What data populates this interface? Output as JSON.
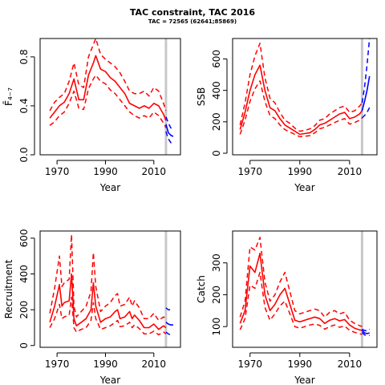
{
  "figure": {
    "title": "TAC constraint, TAC 2016",
    "subtitle": "TAC = 72565 (62641;85869)"
  },
  "colors": {
    "estimate": "#ff0000",
    "forecast": "#0000ff",
    "tac_line": "#c8c8c8"
  },
  "chart_data": [
    {
      "id": "fbar",
      "type": "line",
      "xlabel": "Year",
      "ylabel": "F̄₄₋₇",
      "xlim": [
        1963,
        2021
      ],
      "ylim": [
        0,
        0.95
      ],
      "xticks": [
        1970,
        1990,
        2010
      ],
      "yticks": [
        0.0,
        0.4,
        0.8
      ],
      "ytick_labels": [
        "0.0",
        "0.4",
        "0.8"
      ],
      "vline": 2015,
      "series": [
        {
          "role": "estimate",
          "style": "solid",
          "x": [
            1967,
            1969,
            1971,
            1973,
            1975,
            1977,
            1979,
            1981,
            1983,
            1985,
            1986,
            1988,
            1990,
            1992,
            1994,
            1996,
            1998,
            2000,
            2002,
            2004,
            2006,
            2008,
            2010,
            2012,
            2014,
            2015
          ],
          "y": [
            0.3,
            0.35,
            0.4,
            0.43,
            0.5,
            0.62,
            0.45,
            0.45,
            0.65,
            0.75,
            0.81,
            0.7,
            0.68,
            0.63,
            0.6,
            0.55,
            0.5,
            0.42,
            0.4,
            0.38,
            0.4,
            0.38,
            0.42,
            0.4,
            0.33,
            0.28
          ]
        },
        {
          "role": "estimate",
          "style": "dashed",
          "x": [
            1967,
            1969,
            1971,
            1973,
            1975,
            1977,
            1979,
            1981,
            1983,
            1985,
            1986,
            1988,
            1990,
            1992,
            1994,
            1996,
            1998,
            2000,
            2002,
            2004,
            2006,
            2008,
            2010,
            2012,
            2014,
            2015
          ],
          "y": [
            0.36,
            0.43,
            0.47,
            0.5,
            0.6,
            0.75,
            0.57,
            0.55,
            0.8,
            0.9,
            0.95,
            0.82,
            0.78,
            0.75,
            0.72,
            0.67,
            0.6,
            0.52,
            0.5,
            0.5,
            0.52,
            0.48,
            0.55,
            0.52,
            0.42,
            0.36
          ]
        },
        {
          "role": "estimate",
          "style": "dashed",
          "x": [
            1967,
            1969,
            1971,
            1973,
            1975,
            1977,
            1979,
            1981,
            1983,
            1985,
            1986,
            1988,
            1990,
            1992,
            1994,
            1996,
            1998,
            2000,
            2002,
            2004,
            2006,
            2008,
            2010,
            2012,
            2014,
            2015
          ],
          "y": [
            0.24,
            0.27,
            0.32,
            0.35,
            0.42,
            0.52,
            0.38,
            0.37,
            0.54,
            0.62,
            0.65,
            0.6,
            0.58,
            0.53,
            0.5,
            0.45,
            0.4,
            0.35,
            0.32,
            0.3,
            0.32,
            0.3,
            0.35,
            0.32,
            0.26,
            0.22
          ]
        },
        {
          "role": "forecast",
          "style": "solid",
          "x": [
            2015,
            2016,
            2017,
            2018
          ],
          "y": [
            0.25,
            0.18,
            0.16,
            0.15
          ]
        },
        {
          "role": "forecast",
          "style": "dashed",
          "x": [
            2015,
            2016,
            2017,
            2018
          ],
          "y": [
            0.31,
            0.26,
            0.22,
            0.2
          ]
        },
        {
          "role": "forecast",
          "style": "dashed",
          "x": [
            2015,
            2016,
            2017,
            2018
          ],
          "y": [
            0.19,
            0.13,
            0.1,
            0.08
          ]
        }
      ]
    },
    {
      "id": "ssb",
      "type": "line",
      "xlabel": "Year",
      "ylabel": "SSB",
      "xlim": [
        1963,
        2021
      ],
      "ylim": [
        -10,
        730
      ],
      "xticks": [
        1970,
        1990,
        2010
      ],
      "yticks": [
        0,
        200,
        400,
        600
      ],
      "ytick_labels": [
        "0",
        "200",
        "400",
        "600"
      ],
      "vline": 2015,
      "series": [
        {
          "role": "estimate",
          "style": "solid",
          "x": [
            1966,
            1968,
            1970,
            1972,
            1974,
            1976,
            1978,
            1980,
            1982,
            1984,
            1986,
            1988,
            1990,
            1992,
            1994,
            1996,
            1998,
            2000,
            2002,
            2004,
            2006,
            2008,
            2010,
            2012,
            2014,
            2015
          ],
          "y": [
            150,
            260,
            400,
            500,
            560,
            400,
            290,
            270,
            220,
            180,
            160,
            140,
            120,
            125,
            130,
            150,
            180,
            190,
            210,
            230,
            250,
            260,
            220,
            230,
            250,
            270
          ]
        },
        {
          "role": "estimate",
          "style": "dashed",
          "x": [
            1966,
            1968,
            1970,
            1972,
            1974,
            1976,
            1978,
            1980,
            1982,
            1984,
            1986,
            1988,
            1990,
            1992,
            1994,
            1996,
            1998,
            2000,
            2002,
            2004,
            2006,
            2008,
            2010,
            2012,
            2014,
            2015
          ],
          "y": [
            180,
            320,
            500,
            620,
            700,
            480,
            350,
            320,
            260,
            210,
            190,
            160,
            140,
            145,
            155,
            175,
            210,
            220,
            250,
            270,
            290,
            300,
            260,
            270,
            300,
            320
          ]
        },
        {
          "role": "estimate",
          "style": "dashed",
          "x": [
            1966,
            1968,
            1970,
            1972,
            1974,
            1976,
            1978,
            1980,
            1982,
            1984,
            1986,
            1988,
            1990,
            1992,
            1994,
            1996,
            1998,
            2000,
            2002,
            2004,
            2006,
            2008,
            2010,
            2012,
            2014,
            2015
          ],
          "y": [
            120,
            210,
            330,
            410,
            460,
            330,
            240,
            220,
            180,
            150,
            135,
            120,
            105,
            108,
            112,
            130,
            155,
            165,
            180,
            195,
            210,
            220,
            185,
            195,
            210,
            225
          ]
        },
        {
          "role": "forecast",
          "style": "solid",
          "x": [
            2015,
            2016,
            2017,
            2018
          ],
          "y": [
            270,
            330,
            400,
            490
          ]
        },
        {
          "role": "forecast",
          "style": "dashed",
          "x": [
            2015,
            2016,
            2017,
            2018
          ],
          "y": [
            320,
            420,
            560,
            730
          ]
        },
        {
          "role": "forecast",
          "style": "dashed",
          "x": [
            2015,
            2016,
            2017,
            2018
          ],
          "y": [
            225,
            240,
            260,
            290
          ]
        }
      ]
    },
    {
      "id": "recruitment",
      "type": "line",
      "xlabel": "Year",
      "ylabel": "Recruitment",
      "xlim": [
        1963,
        2021
      ],
      "ylim": [
        -10,
        640
      ],
      "xticks": [
        1970,
        1990,
        2010
      ],
      "yticks": [
        0,
        200,
        400,
        600
      ],
      "ytick_labels": [
        "0",
        "200",
        "400",
        "600"
      ],
      "vline": 2015,
      "series": [
        {
          "role": "estimate",
          "style": "solid",
          "x": [
            1967,
            1969,
            1971,
            1972,
            1973,
            1975,
            1976,
            1977,
            1978,
            1980,
            1982,
            1984,
            1985,
            1986,
            1988,
            1990,
            1992,
            1994,
            1995,
            1996,
            1998,
            2000,
            2001,
            2002,
            2004,
            2006,
            2008,
            2010,
            2012,
            2014,
            2015
          ],
          "y": [
            130,
            220,
            340,
            220,
            240,
            250,
            400,
            150,
            110,
            130,
            150,
            200,
            350,
            220,
            130,
            150,
            160,
            190,
            200,
            150,
            160,
            190,
            150,
            170,
            140,
            100,
            100,
            120,
            90,
            110,
            100
          ]
        },
        {
          "role": "estimate",
          "style": "dashed",
          "x": [
            1967,
            1969,
            1971,
            1972,
            1973,
            1975,
            1976,
            1977,
            1978,
            1980,
            1982,
            1984,
            1985,
            1986,
            1988,
            1990,
            1992,
            1994,
            1995,
            1996,
            1998,
            2000,
            2001,
            2002,
            2004,
            2006,
            2008,
            2010,
            2012,
            2014,
            2015
          ],
          "y": [
            180,
            320,
            500,
            330,
            350,
            370,
            620,
            220,
            160,
            190,
            220,
            300,
            520,
            330,
            190,
            220,
            240,
            280,
            290,
            220,
            230,
            270,
            220,
            250,
            210,
            150,
            150,
            180,
            140,
            160,
            150
          ]
        },
        {
          "role": "estimate",
          "style": "dashed",
          "x": [
            1967,
            1969,
            1971,
            1972,
            1973,
            1975,
            1976,
            1977,
            1978,
            1980,
            1982,
            1984,
            1985,
            1986,
            1988,
            1990,
            1992,
            1994,
            1995,
            1996,
            1998,
            2000,
            2001,
            2002,
            2004,
            2006,
            2008,
            2010,
            2012,
            2014,
            2015
          ],
          "y": [
            100,
            150,
            230,
            150,
            160,
            170,
            270,
            100,
            75,
            90,
            100,
            140,
            240,
            150,
            90,
            100,
            110,
            130,
            140,
            105,
            110,
            130,
            100,
            115,
            95,
            65,
            65,
            80,
            60,
            75,
            65
          ]
        },
        {
          "role": "forecast",
          "style": "solid",
          "x": [
            2015,
            2016,
            2017,
            2018
          ],
          "y": [
            130,
            120,
            115,
            115
          ]
        },
        {
          "role": "forecast",
          "style": "dashed",
          "x": [
            2015,
            2016,
            2017,
            2018
          ],
          "y": [
            210,
            200,
            200,
            200
          ]
        },
        {
          "role": "forecast",
          "style": "dashed",
          "x": [
            2015,
            2016,
            2017,
            2018
          ],
          "y": [
            75,
            65,
            60,
            60
          ]
        }
      ]
    },
    {
      "id": "catch",
      "type": "line",
      "xlabel": "Year",
      "ylabel": "Catch",
      "xlim": [
        1963,
        2021
      ],
      "ylim": [
        35,
        400
      ],
      "xticks": [
        1970,
        1990,
        2010
      ],
      "yticks": [
        100,
        200,
        300
      ],
      "ytick_labels": [
        "100",
        "200",
        "300"
      ],
      "vline": 2015,
      "series": [
        {
          "role": "estimate",
          "style": "solid",
          "x": [
            1966,
            1968,
            1970,
            1972,
            1974,
            1976,
            1978,
            1980,
            1982,
            1984,
            1986,
            1988,
            1990,
            1992,
            1994,
            1996,
            1998,
            2000,
            2002,
            2004,
            2006,
            2008,
            2010,
            2012,
            2014,
            2015
          ],
          "y": [
            110,
            150,
            290,
            270,
            330,
            200,
            150,
            170,
            200,
            220,
            170,
            120,
            115,
            120,
            125,
            130,
            125,
            110,
            120,
            125,
            118,
            122,
            105,
            95,
            90,
            88
          ]
        },
        {
          "role": "estimate",
          "style": "dashed",
          "x": [
            1966,
            1968,
            1970,
            1972,
            1974,
            1976,
            1978,
            1980,
            1982,
            1984,
            1986,
            1988,
            1990,
            1992,
            1994,
            1996,
            1998,
            2000,
            2002,
            2004,
            2006,
            2008,
            2010,
            2012,
            2014,
            2015
          ],
          "y": [
            130,
            180,
            350,
            340,
            380,
            240,
            180,
            200,
            240,
            270,
            210,
            150,
            140,
            145,
            150,
            155,
            150,
            130,
            145,
            150,
            140,
            145,
            120,
            110,
            103,
            100
          ]
        },
        {
          "role": "estimate",
          "style": "dashed",
          "x": [
            1966,
            1968,
            1970,
            1972,
            1974,
            1976,
            1978,
            1980,
            1982,
            1984,
            1986,
            1988,
            1990,
            1992,
            1994,
            1996,
            1998,
            2000,
            2002,
            2004,
            2006,
            2008,
            2010,
            2012,
            2014,
            2015
          ],
          "y": [
            90,
            125,
            230,
            220,
            270,
            160,
            120,
            140,
            165,
            180,
            140,
            100,
            95,
            100,
            105,
            108,
            104,
            92,
            100,
            105,
            98,
            102,
            88,
            82,
            78,
            75
          ]
        },
        {
          "role": "forecast",
          "style": "solid",
          "x": [
            2015,
            2016,
            2017,
            2018
          ],
          "y": [
            88,
            80,
            78,
            80
          ]
        },
        {
          "role": "forecast",
          "style": "dashed",
          "x": [
            2015,
            2016,
            2017,
            2018
          ],
          "y": [
            92,
            88,
            86,
            92
          ]
        },
        {
          "role": "forecast",
          "style": "dashed",
          "x": [
            2015,
            2016,
            2017,
            2018
          ],
          "y": [
            82,
            74,
            72,
            72
          ]
        }
      ]
    }
  ]
}
